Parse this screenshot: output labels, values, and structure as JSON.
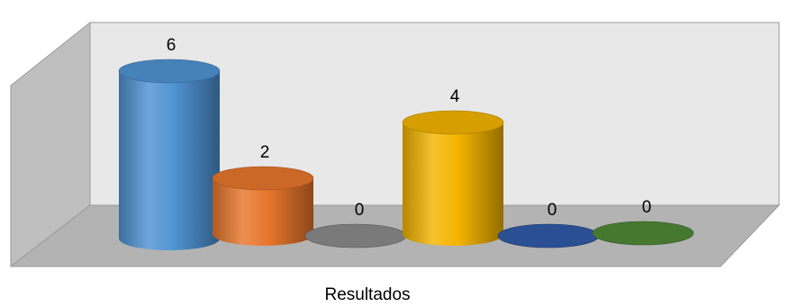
{
  "chart_data": {
    "type": "bar",
    "style": "3d-cylinder",
    "title": "",
    "xlabel": "Resultados",
    "ylabel": "",
    "ylim": [
      0,
      6
    ],
    "grid": false,
    "legend": "none",
    "series": [
      {
        "value": 6,
        "label": "6",
        "color": "#4f93d3"
      },
      {
        "value": 2,
        "label": "2",
        "color": "#e8762c"
      },
      {
        "value": 0,
        "label": "0",
        "color": "#7a7a7a"
      },
      {
        "value": 4,
        "label": "4",
        "color": "#f4b400"
      },
      {
        "value": 0,
        "label": "0",
        "color": "#2a4f93"
      },
      {
        "value": 0,
        "label": "0",
        "color": "#46782f"
      }
    ]
  },
  "colors": {
    "back_wall": "#e8e8e8",
    "side_wall": "#bfbfbf",
    "floor": "#b3b3b3",
    "wall_stroke": "#9a9a9a"
  }
}
